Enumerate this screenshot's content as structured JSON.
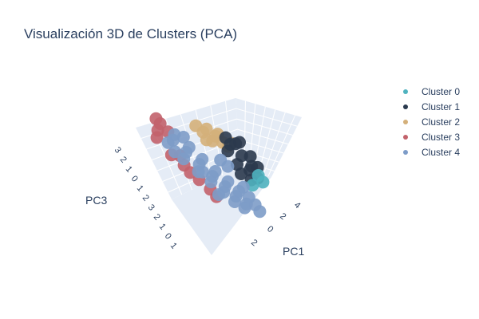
{
  "title": "Visualización 3D de Clusters (PCA)",
  "legend": [
    {
      "name": "Cluster 0",
      "color": "#4fb3bf"
    },
    {
      "name": "Cluster 1",
      "color": "#2b3a4e"
    },
    {
      "name": "Cluster 2",
      "color": "#d4b07a"
    },
    {
      "name": "Cluster 3",
      "color": "#c2626b"
    },
    {
      "name": "Cluster 4",
      "color": "#7d9cc8"
    }
  ],
  "chart_data": {
    "type": "scatter",
    "title": "Visualización 3D de Clusters (PCA)",
    "axes": {
      "x": {
        "label": "PC1",
        "ticks": [
          "4",
          "2",
          "0",
          "2"
        ]
      },
      "z": {
        "label": "PC3",
        "ticks": [
          "3",
          "2",
          "1",
          "0",
          "1",
          "2",
          "3",
          "2",
          "1",
          "0",
          "1"
        ]
      }
    },
    "series": [
      {
        "name": "Cluster 0",
        "color": "#4fb3bf",
        "points": [
          [
            3.2,
            1.4
          ],
          [
            3.4,
            1.1
          ],
          [
            2.6,
            0.6
          ]
        ]
      },
      {
        "name": "Cluster 1",
        "color": "#2b3a4e",
        "points": [
          [
            1.8,
            2.6
          ],
          [
            2.4,
            2.2
          ],
          [
            2.9,
            1.8
          ],
          [
            3.1,
            1.2
          ],
          [
            2.6,
            0.9
          ],
          [
            1.9,
            1.5
          ],
          [
            2.2,
            2.8
          ],
          [
            3.0,
            2.4
          ],
          [
            1.5,
            2.1
          ],
          [
            2.7,
            1.5
          ],
          [
            3.3,
            1.9
          ],
          [
            2.0,
            1.0
          ],
          [
            1.6,
            2.9
          ],
          [
            2.5,
            3.0
          ]
        ]
      },
      {
        "name": "Cluster 2",
        "color": "#d4b07a",
        "points": [
          [
            0.4,
            2.9
          ],
          [
            0.9,
            2.7
          ],
          [
            1.3,
            2.5
          ],
          [
            0.1,
            2.6
          ],
          [
            1.6,
            2.4
          ],
          [
            0.6,
            2.3
          ],
          [
            1.1,
            2.9
          ],
          [
            1.9,
            2.7
          ],
          [
            -0.3,
            2.8
          ],
          [
            0.2,
            2.2
          ]
        ]
      },
      {
        "name": "Cluster 3",
        "color": "#c2626b",
        "points": [
          [
            -2.8,
            1.9
          ],
          [
            -3.1,
            1.4
          ],
          [
            -2.4,
            1.6
          ],
          [
            -3.3,
            0.9
          ],
          [
            -2.0,
            0.4
          ],
          [
            -1.6,
            -0.4
          ],
          [
            -1.1,
            -0.6
          ],
          [
            -2.6,
            0.2
          ],
          [
            -1.9,
            -0.1
          ],
          [
            -0.5,
            -0.9
          ],
          [
            -0.2,
            -1.2
          ],
          [
            -3.0,
            2.1
          ]
        ]
      },
      {
        "name": "Cluster 4",
        "color": "#7d9cc8",
        "points": [
          [
            -2.2,
            1.2
          ],
          [
            -1.5,
            0.8
          ],
          [
            -0.8,
            0.4
          ],
          [
            -0.1,
            0.0
          ],
          [
            0.6,
            -0.3
          ],
          [
            1.2,
            -0.6
          ],
          [
            1.8,
            -0.8
          ],
          [
            2.4,
            -0.6
          ],
          [
            -2.6,
            0.9
          ],
          [
            -1.8,
            0.3
          ],
          [
            -1.0,
            -0.1
          ],
          [
            -0.3,
            -0.4
          ],
          [
            0.4,
            -0.7
          ],
          [
            1.0,
            -1.0
          ],
          [
            1.6,
            -1.1
          ],
          [
            -2.0,
            1.6
          ],
          [
            -1.2,
            1.2
          ],
          [
            -0.5,
            0.8
          ],
          [
            0.2,
            0.4
          ],
          [
            0.9,
            0.1
          ],
          [
            1.5,
            -0.2
          ],
          [
            2.1,
            -0.3
          ],
          [
            -1.4,
            1.7
          ],
          [
            0.8,
            1.3
          ],
          [
            1.2,
            1.1
          ],
          [
            -2.3,
            0.5
          ],
          [
            2.6,
            -0.9
          ],
          [
            0.0,
            -1.0
          ],
          [
            -0.7,
            0.0
          ],
          [
            1.9,
            0.2
          ]
        ]
      }
    ],
    "grid": true,
    "legend_position": "right"
  }
}
